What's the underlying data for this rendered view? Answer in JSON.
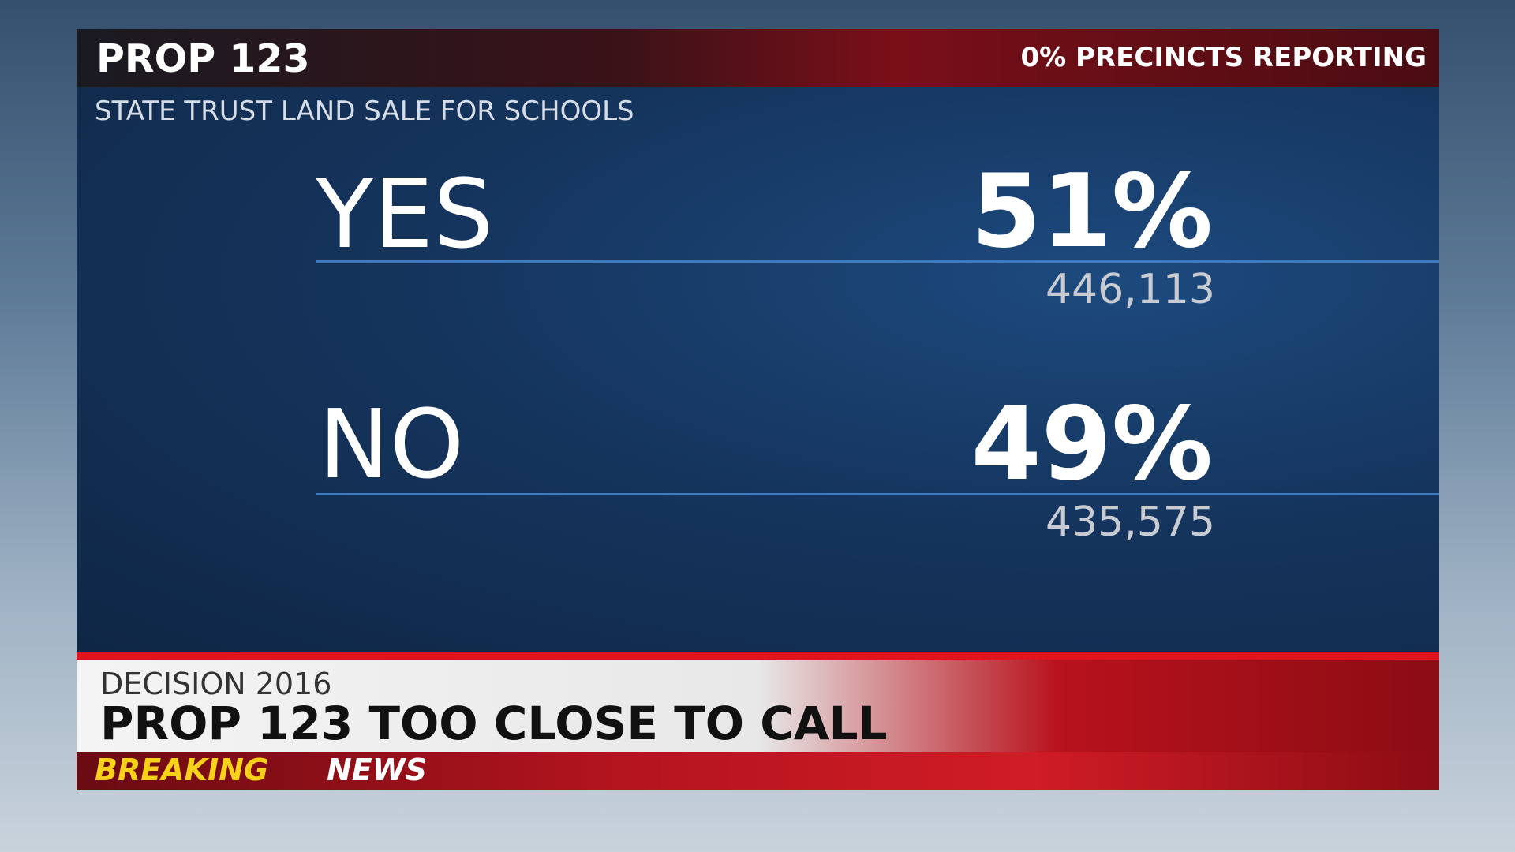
{
  "header": {
    "title": "PROP 123",
    "reporting": "0% PRECINCTS REPORTING",
    "subtitle": "STATE TRUST LAND SALE FOR SCHOOLS"
  },
  "results": [
    {
      "label": "YES",
      "percent": "51%",
      "votes": "446,113"
    },
    {
      "label": "NO",
      "percent": "49%",
      "votes": "435,575"
    }
  ],
  "ticker": {
    "kicker": "DECISION 2016",
    "headline": "PROP 123 TOO CLOSE TO CALL",
    "breaking": "BREAKING",
    "news": "NEWS"
  }
}
